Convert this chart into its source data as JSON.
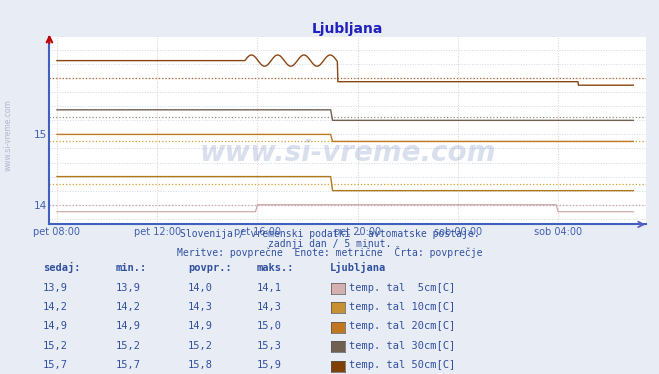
{
  "title": "Ljubljana",
  "background_color": "#e8ecf4",
  "plot_bg_color": "#ffffff",
  "title_color": "#2020c0",
  "xlabel_color": "#4060b0",
  "ylabel_color": "#4060b0",
  "x_tick_labels": [
    "pet 08:00",
    "pet 12:00",
    "pet 16:00",
    "pet 20:00",
    "sob 00:00",
    "sob 04:00"
  ],
  "x_tick_positions": [
    0,
    4,
    8,
    12,
    16,
    20
  ],
  "y_ticks": [
    14,
    15
  ],
  "ylim": [
    13.72,
    16.38
  ],
  "xlim": [
    -0.3,
    23.5
  ],
  "subtitle1": "Slovenija / vremenski podatki - avtomatske postaje.",
  "subtitle2": "zadnji dan / 5 minut.",
  "subtitle3": "Meritve: povprečne  Enote: metrične  Črta: povprečje",
  "table_headers": [
    "sedaj:",
    "min.:",
    "povpr.:",
    "maks.:"
  ],
  "table_data": [
    [
      13.9,
      13.9,
      14.0,
      14.1
    ],
    [
      14.2,
      14.2,
      14.3,
      14.3
    ],
    [
      14.9,
      14.9,
      14.9,
      15.0
    ],
    [
      15.2,
      15.2,
      15.2,
      15.3
    ],
    [
      15.7,
      15.7,
      15.8,
      15.9
    ]
  ],
  "series_labels": [
    "temp. tal  5cm[C]",
    "temp. tal 10cm[C]",
    "temp. tal 20cm[C]",
    "temp. tal 30cm[C]",
    "temp. tal 50cm[C]"
  ],
  "series_line_colors": [
    "#c8a0a0",
    "#b07818",
    "#c07820",
    "#706050",
    "#8B4513"
  ],
  "series_avg_colors": [
    "#c8a0a0",
    "#d4a030",
    "#d4a030",
    "#909080",
    "#b06020"
  ],
  "legend_box_colors": [
    "#d4b0b0",
    "#c89030",
    "#c07820",
    "#706050",
    "#804000"
  ],
  "arrow_color": "#c00000",
  "vgrid_color": "#e8c8c8",
  "hgrid_color": "#d0d8e8"
}
